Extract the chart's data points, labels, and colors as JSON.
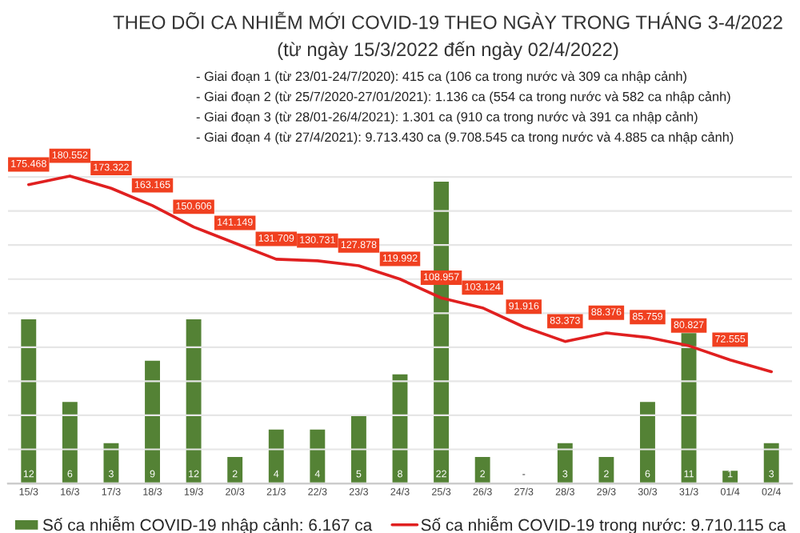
{
  "chart_data": {
    "type": "bar",
    "title": "THEO DÕI CA NHIỄM MỚI COVID-19 THEO NGÀY TRONG THÁNG 3-4/2022",
    "subtitle": "(từ ngày 15/3/2022 đến ngày 02/4/2022)",
    "annotations": [
      "- Giai đoạn 1 (từ 23/01-24/7/2020): 415 ca (106 ca trong nước và 309 ca nhập cảnh)",
      "- Giai đoạn 2 (từ 25/7/2020-27/01/2021): 1.136 ca (554 ca trong nước và 582 ca nhập cảnh)",
      "- Giai đoạn 3 (từ 28/01-26/4/2021): 1.301 ca (910 ca trong nước và 391 ca nhập cảnh)",
      "- Giai đoạn 4 (từ 27/4/2021): 9.713.430 ca (9.708.545 ca trong nước và 4.885 ca nhập cảnh)"
    ],
    "categories": [
      "15/3",
      "16/3",
      "17/3",
      "18/3",
      "19/3",
      "20/3",
      "21/3",
      "22/3",
      "23/3",
      "24/3",
      "25/3",
      "26/3",
      "27/3",
      "28/3",
      "29/3",
      "30/3",
      "31/3",
      "01/4",
      "02/4"
    ],
    "series": [
      {
        "name": "Số ca nhiễm COVID-19 nhập cảnh: 6.167 ca",
        "axis": "y2",
        "color": "#548235",
        "values": [
          12,
          6,
          3,
          9,
          12,
          2,
          4,
          4,
          5,
          8,
          22,
          2,
          null,
          3,
          2,
          6,
          11,
          1,
          3
        ],
        "value_labels": [
          "12",
          "6",
          "3",
          "9",
          "12",
          "2",
          "4",
          "4",
          "5",
          "8",
          "22",
          "2",
          "-",
          "3",
          "2",
          "6",
          "11",
          "1",
          "3"
        ]
      },
      {
        "name": "Số ca nhiễm COVID-19 trong nước: 9.710.115 ca",
        "type": "line",
        "color": "#e02020",
        "values": [
          175468,
          180552,
          173322,
          163165,
          150606,
          141149,
          131709,
          130731,
          127878,
          119992,
          108957,
          103124,
          91916,
          83373,
          88376,
          85759,
          80827,
          72555,
          65600
        ],
        "value_labels": [
          "175.468",
          "180.552",
          "173.322",
          "163.165",
          "150.606",
          "141.149",
          "131.709",
          "130.731",
          "127.878",
          "119.992",
          "108.957",
          "103.124",
          "91.916",
          "83.373",
          "88.376",
          "85.759",
          "80.827",
          "72.555",
          null
        ]
      }
    ],
    "ylim": [
      0,
      190000
    ],
    "yticks": [
      {
        "value": 0,
        "label": null
      },
      {
        "value": 20000,
        "label": null
      },
      {
        "value": 40000,
        "label": null
      },
      {
        "value": 60000,
        "label": null
      },
      {
        "value": 80000,
        "label": null
      },
      {
        "value": 100000,
        "label": null
      },
      {
        "value": 120000,
        "label": null
      },
      {
        "value": 140000,
        "label": null
      },
      {
        "value": 160000,
        "label": null
      },
      {
        "value": 180000,
        "label": null
      }
    ],
    "y2lim": [
      0,
      23.5
    ],
    "tick_labels": "x",
    "grid": "y",
    "legend": "bottom"
  }
}
